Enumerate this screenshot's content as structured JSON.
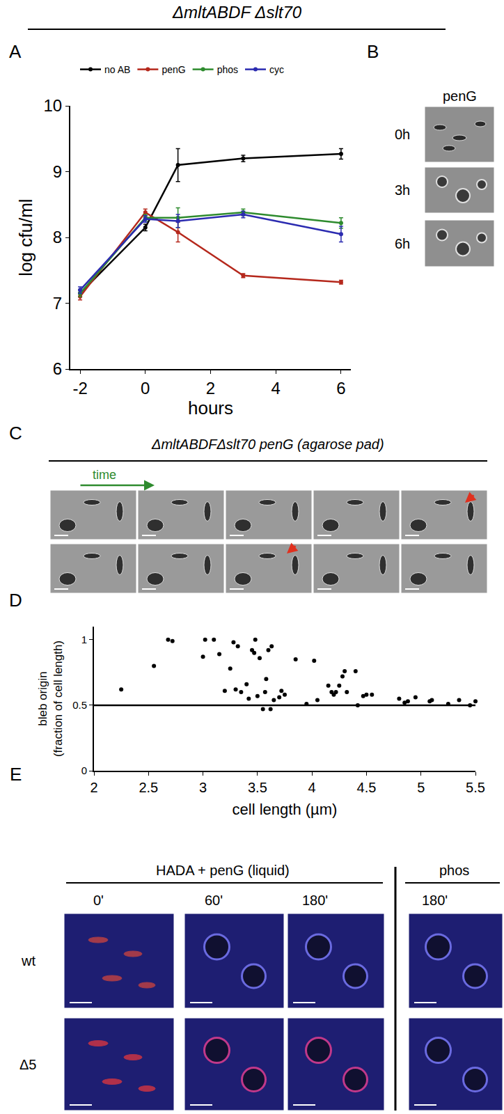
{
  "header": "ΔmltABDF Δslt70",
  "panel_labels": [
    "A",
    "B",
    "C",
    "D",
    "E"
  ],
  "chart_data": [
    {
      "type": "line",
      "x": [
        -2,
        0,
        1,
        3,
        6
      ],
      "series": [
        {
          "name": "no AB",
          "color": "#000000",
          "values": [
            7.15,
            8.15,
            9.1,
            9.2,
            9.27
          ],
          "errors": [
            0.05,
            0.05,
            0.25,
            0.05,
            0.08
          ]
        },
        {
          "name": "penG",
          "color": "#b5281c",
          "values": [
            7.1,
            8.38,
            8.08,
            7.42,
            7.32
          ],
          "errors": [
            0.05,
            0.05,
            0.15,
            0.03,
            0.03
          ]
        },
        {
          "name": "phos",
          "color": "#2e8b2e",
          "values": [
            7.15,
            8.3,
            8.3,
            8.38,
            8.22
          ],
          "errors": [
            0.05,
            0.05,
            0.15,
            0.05,
            0.08
          ]
        },
        {
          "name": "cyc",
          "color": "#2b2bb0",
          "values": [
            7.2,
            8.28,
            8.25,
            8.35,
            8.05
          ],
          "errors": [
            0.05,
            0.05,
            0.1,
            0.05,
            0.12
          ]
        }
      ],
      "xlabel": "hours",
      "ylabel": "log cfu/ml",
      "xlim": [
        -2.3,
        6.3
      ],
      "xticks": [
        -2,
        0,
        2,
        4,
        6
      ],
      "ylim": [
        6,
        10
      ],
      "yticks": [
        6,
        7,
        8,
        9,
        10
      ],
      "legend": "top",
      "marker": "circle",
      "grid": false
    },
    {
      "type": "scatter",
      "x": [
        2.25,
        2.55,
        2.68,
        2.72,
        3.0,
        3.02,
        3.1,
        3.15,
        3.2,
        3.25,
        3.28,
        3.3,
        3.32,
        3.35,
        3.4,
        3.42,
        3.45,
        3.47,
        3.48,
        3.5,
        3.52,
        3.55,
        3.57,
        3.58,
        3.6,
        3.62,
        3.63,
        3.65,
        3.7,
        3.72,
        3.75,
        3.85,
        3.95,
        4.02,
        4.05,
        4.15,
        4.18,
        4.2,
        4.22,
        4.25,
        4.28,
        4.3,
        4.32,
        4.4,
        4.42,
        4.47,
        4.5,
        4.55,
        4.8,
        4.85,
        4.88,
        4.95,
        5.08,
        5.1,
        5.25,
        5.35,
        5.45,
        5.5
      ],
      "values": [
        0.62,
        0.8,
        1.0,
        0.99,
        0.87,
        1.0,
        1.0,
        0.89,
        0.61,
        0.78,
        0.98,
        0.62,
        0.95,
        0.6,
        0.66,
        0.55,
        0.92,
        0.9,
        1.0,
        0.57,
        0.86,
        0.47,
        0.6,
        0.7,
        0.92,
        0.47,
        0.95,
        0.54,
        0.56,
        0.61,
        0.58,
        0.85,
        0.51,
        0.84,
        0.54,
        0.65,
        0.6,
        0.58,
        0.6,
        0.65,
        0.72,
        0.76,
        0.6,
        0.76,
        0.5,
        0.57,
        0.58,
        0.58,
        0.55,
        0.52,
        0.53,
        0.56,
        0.53,
        0.54,
        0.51,
        0.54,
        0.5,
        0.53
      ],
      "reference_line": 0.5,
      "color": "#000000",
      "marker": "circle",
      "xlabel": "cell length (µm)",
      "ylabel": [
        "bleb origin",
        "(fraction of cell length)"
      ],
      "xlim": [
        2,
        5.5
      ],
      "xticks": [
        2,
        2.5,
        3,
        3.5,
        4,
        4.5,
        5,
        5.5
      ],
      "ylim": [
        0,
        1.1
      ],
      "yticks": [
        0,
        0.5,
        1
      ],
      "grid": false
    }
  ],
  "panel_b": {
    "title": "penG",
    "rows": [
      "0h",
      "3h",
      "6h"
    ]
  },
  "panel_c": {
    "title": "ΔmltABDFΔslt70 penG (agarose pad)",
    "arrow_label": "time"
  },
  "panel_e": {
    "title": "HADA + penG (liquid)",
    "side_title": "phos",
    "columns": [
      "0'",
      "60'",
      "180'",
      "180'"
    ],
    "rows": [
      "wt",
      "Δ5"
    ]
  }
}
